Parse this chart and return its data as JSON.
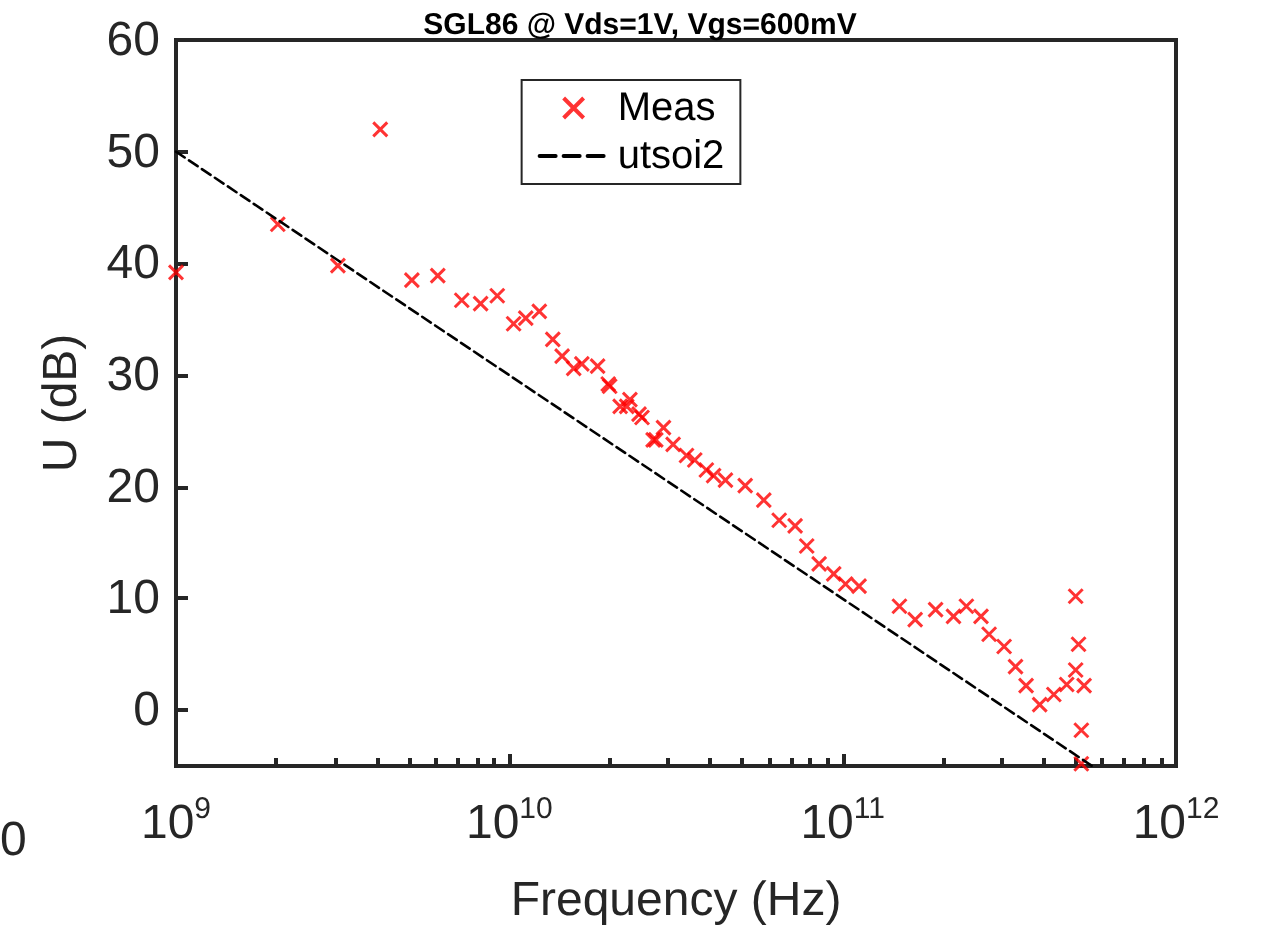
{
  "chart_data": {
    "type": "scatter",
    "title": "SGL86 @ Vds=1V, Vgs=600mV",
    "xlabel": "Frequency (Hz)",
    "ylabel": "U (dB)",
    "log": "x",
    "xlim": [
      1000000000,
      1000000000000
    ],
    "xticks": [
      {
        "value": 1000000000,
        "label": "10$^{9}$"
      },
      {
        "value": 10000000000,
        "label": "10$^{10}$"
      },
      {
        "value": 100000000000,
        "label": "10$^{11}$"
      },
      {
        "value": 1000000000000,
        "label": "10$^{12}$"
      }
    ],
    "ylim": [
      -5,
      60
    ],
    "yticks": [
      0,
      10,
      20,
      30,
      40,
      50,
      60
    ],
    "grid": false,
    "legend": "top",
    "annotations": [
      "0"
    ],
    "series": [
      {
        "name": "Meas",
        "marker": "cross",
        "color": "#ff0000",
        "x": [
          1000000000,
          2020000000,
          3060000000,
          4100000000,
          5100000000,
          6100000000,
          7200000000,
          8200000000,
          9200000000,
          10300000000,
          11200000000,
          12300000000,
          13500000000,
          14400000000,
          15600000000,
          16500000000,
          18400000000,
          19800000000,
          20000000000,
          21500000000,
          22500000000,
          23000000000,
          24500000000,
          25000000000,
          27000000000,
          27500000000,
          29000000000,
          31000000000,
          34000000000,
          36000000000,
          39000000000,
          41000000000,
          44500000000,
          51000000000,
          58000000000,
          64500000000,
          72000000000,
          78000000000,
          85000000000,
          94000000000,
          102000000000,
          112000000000,
          148000000000,
          165000000000,
          190000000000,
          215000000000,
          235000000000,
          260000000000,
          275000000000,
          305000000000,
          330000000000,
          355000000000,
          390000000000,
          430000000000,
          470000000000,
          500000000000,
          500000000000,
          510000000000,
          530000000000,
          520000000000,
          520000000000
        ],
        "values": [
          39.2,
          43.5,
          39.8,
          52,
          38.5,
          38.9,
          36.7,
          36.4,
          37.1,
          34.6,
          35.1,
          35.7,
          33.2,
          31.7,
          30.6,
          31,
          30.8,
          29.2,
          29,
          27.2,
          27.2,
          27.8,
          26.5,
          26.2,
          24.2,
          24.2,
          25.3,
          23.8,
          22.8,
          22.4,
          21.5,
          21,
          20.6,
          20.1,
          18.8,
          17,
          16.5,
          14.7,
          13.1,
          12.2,
          11.3,
          11.1,
          9.3,
          8.1,
          9,
          8.4,
          9.3,
          8.4,
          6.8,
          5.7,
          3.9,
          2.2,
          0.5,
          1.4,
          2.3,
          3.6,
          10.2,
          5.9,
          2.2,
          -1.8,
          -4.8
        ]
      },
      {
        "name": "utsoi2",
        "type": "line",
        "color": "#000000",
        "line_style": "dashed",
        "marker": "none",
        "x": [
          1000000000,
          560000000000
        ],
        "values": [
          50,
          -5
        ]
      }
    ]
  }
}
